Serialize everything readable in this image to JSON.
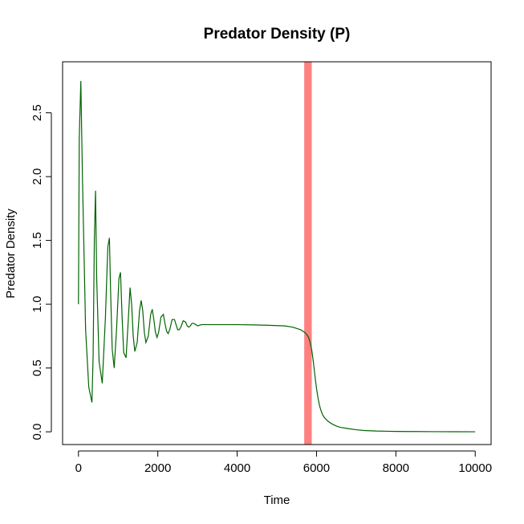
{
  "chart_data": {
    "type": "line",
    "title": "Predator Density (P)",
    "xlabel": "Time",
    "ylabel": "Predator Density",
    "xlim": [
      -400,
      10400
    ],
    "ylim": [
      -0.1,
      2.9
    ],
    "x_ticks": [
      0,
      2000,
      4000,
      6000,
      8000,
      10000
    ],
    "y_ticks": [
      0.0,
      0.5,
      1.0,
      1.5,
      2.0,
      2.5
    ],
    "x_tick_labels": [
      "0",
      "2000",
      "4000",
      "6000",
      "8000",
      "10000"
    ],
    "y_tick_labels": [
      "0.0",
      "0.5",
      "1.0",
      "1.5",
      "2.0",
      "2.5"
    ],
    "grid": false,
    "legend": "none",
    "highlight_band": {
      "x_start": 5690,
      "x_end": 5880,
      "color": "#ff8080"
    },
    "series": [
      {
        "color": "#006400",
        "x": [
          0,
          20,
          60,
          100,
          180,
          260,
          340,
          370,
          400,
          430,
          460,
          520,
          600,
          680,
          740,
          780,
          810,
          850,
          900,
          960,
          1020,
          1060,
          1100,
          1140,
          1200,
          1260,
          1300,
          1340,
          1380,
          1420,
          1480,
          1540,
          1580,
          1620,
          1660,
          1700,
          1760,
          1820,
          1860,
          1900,
          1940,
          1980,
          2020,
          2080,
          2140,
          2180,
          2220,
          2260,
          2300,
          2360,
          2420,
          2460,
          2500,
          2540,
          2580,
          2640,
          2700,
          2740,
          2780,
          2820,
          2860,
          2900,
          2960,
          3000,
          3100,
          3300,
          3600,
          4000,
          4400,
          4800,
          5200,
          5400,
          5600,
          5700,
          5760,
          5800,
          5840,
          5880,
          5920,
          5960,
          6000,
          6040,
          6080,
          6120,
          6160,
          6200,
          6300,
          6400,
          6500,
          6600,
          6800,
          7000,
          7200,
          7500,
          7800,
          8000,
          8500,
          9000,
          9500,
          10000
        ],
        "values": [
          1.0,
          2.3,
          2.75,
          2.0,
          0.8,
          0.35,
          0.23,
          0.6,
          1.5,
          1.89,
          1.2,
          0.55,
          0.38,
          0.9,
          1.45,
          1.52,
          1.1,
          0.65,
          0.5,
          0.8,
          1.2,
          1.25,
          0.9,
          0.62,
          0.58,
          0.9,
          1.13,
          1.0,
          0.75,
          0.63,
          0.7,
          0.95,
          1.03,
          0.95,
          0.78,
          0.7,
          0.75,
          0.92,
          0.96,
          0.88,
          0.78,
          0.74,
          0.78,
          0.9,
          0.92,
          0.85,
          0.79,
          0.77,
          0.8,
          0.88,
          0.88,
          0.84,
          0.8,
          0.8,
          0.82,
          0.87,
          0.86,
          0.83,
          0.82,
          0.83,
          0.85,
          0.85,
          0.84,
          0.83,
          0.84,
          0.84,
          0.84,
          0.84,
          0.838,
          0.835,
          0.83,
          0.82,
          0.8,
          0.78,
          0.76,
          0.74,
          0.7,
          0.64,
          0.55,
          0.44,
          0.34,
          0.26,
          0.2,
          0.16,
          0.13,
          0.11,
          0.08,
          0.06,
          0.045,
          0.035,
          0.025,
          0.016,
          0.01,
          0.006,
          0.004,
          0.003,
          0.002,
          0.001,
          0.0005,
          0.0003
        ]
      }
    ]
  }
}
